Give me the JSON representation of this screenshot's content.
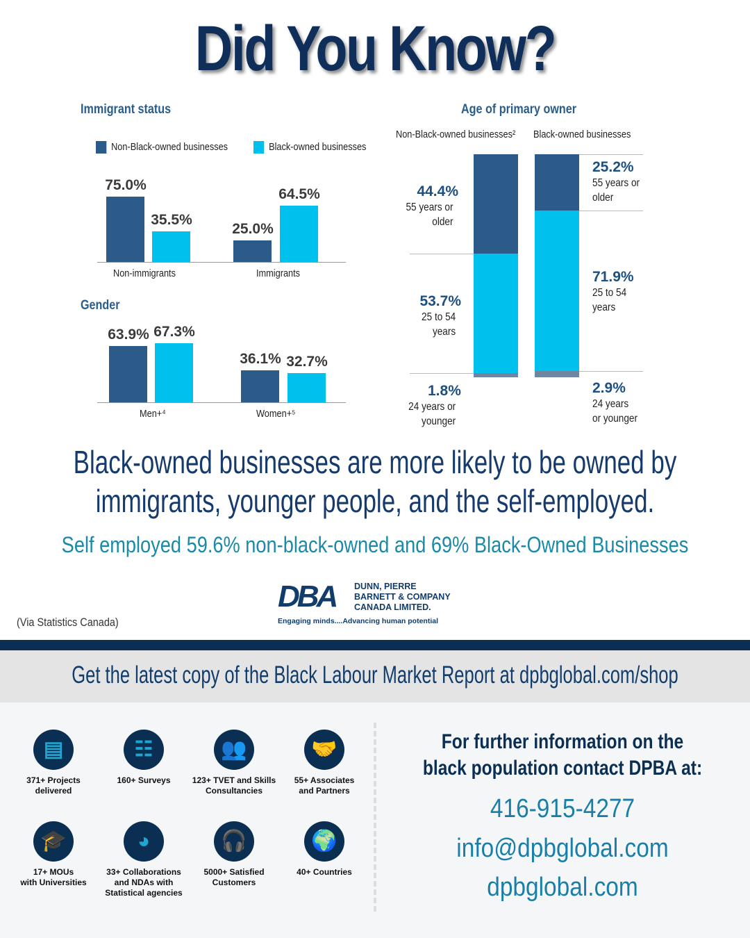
{
  "title": "Did You Know?",
  "chart_data": [
    {
      "type": "bar",
      "title": "Immigrant status",
      "categories": [
        "Non-immigrants",
        "Immigrants"
      ],
      "series": [
        {
          "name": "Non-Black-owned businesses",
          "values": [
            75.0,
            25.0
          ],
          "labels": [
            "75.0%",
            "25.0%"
          ],
          "color": "#2c5a89"
        },
        {
          "name": "Black-owned businesses",
          "values": [
            35.5,
            64.5
          ],
          "labels": [
            "35.5%",
            "64.5%"
          ],
          "color": "#00c1ee"
        }
      ],
      "ylim": [
        0,
        100
      ],
      "legend": "top"
    },
    {
      "type": "bar",
      "title": "Gender",
      "categories": [
        "Men+⁴",
        "Women+⁵"
      ],
      "series": [
        {
          "name": "Non-Black-owned businesses",
          "values": [
            63.9,
            36.1
          ],
          "labels": [
            "63.9%",
            "36.1%"
          ]
        },
        {
          "name": "Black-owned businesses",
          "values": [
            67.3,
            32.7
          ],
          "labels": [
            "67.3%",
            "32.7%"
          ]
        }
      ],
      "ylim": [
        0,
        100
      ]
    },
    {
      "type": "bar",
      "stacked": true,
      "title": "Age of primary owner",
      "categories": [
        "Non-Black-owned businesses²",
        "Black-owned businesses"
      ],
      "series": [
        {
          "name": "55 years or older",
          "values": [
            44.4,
            25.2
          ],
          "labels": [
            "44.4%",
            "25.2%"
          ],
          "color": "#2c5a89"
        },
        {
          "name": "25 to 54 years",
          "values": [
            53.7,
            71.9
          ],
          "labels": [
            "53.7%",
            "71.9%"
          ],
          "color": "#00c1ee"
        },
        {
          "name": "24 years or younger",
          "values": [
            1.8,
            2.9
          ],
          "labels": [
            "1.8%",
            "2.9%"
          ],
          "color": "#6f86a0"
        }
      ]
    }
  ],
  "labels": {
    "nb_left": [
      "55 years or",
      "older",
      "25 to 54",
      "years",
      "24 years or",
      "younger"
    ],
    "b_right": [
      "55 years or",
      "older",
      "25 to 54",
      "years",
      "24 years",
      "or younger"
    ]
  },
  "headline": [
    "Black-owned businesses are more likely to be owned by",
    "immigrants, younger people, and the self-employed."
  ],
  "self_employed": "Self employed 59.6% non-black-owned and 69% Black-Owned Businesses",
  "logo": {
    "mark": "DBA",
    "name": [
      "DUNN, PIERRE",
      "BARNETT & COMPANY",
      "CANADA LIMITED."
    ],
    "tagline": "Engaging minds....Advancing human potential"
  },
  "source": "(Via Statistics Canada)",
  "banner": "Get the latest copy of the Black Labour Market Report at dpbglobal.com/shop",
  "stats": [
    {
      "icon": "documents-icon",
      "text": [
        "371+ Projects",
        "delivered"
      ]
    },
    {
      "icon": "clipboard-icon",
      "text": [
        "160+ Surveys"
      ]
    },
    {
      "icon": "people-icon",
      "text": [
        "123+ TVET and Skills",
        "Consultancies"
      ]
    },
    {
      "icon": "handshake-icon",
      "text": [
        "55+ Associates",
        "and Partners"
      ]
    },
    {
      "icon": "graduation-cap-icon",
      "text": [
        "17+ MOUs",
        "with Universities"
      ]
    },
    {
      "icon": "pie-chart-icon",
      "text": [
        "33+ Collaborations",
        "and NDAs with",
        "Statistical agencies"
      ]
    },
    {
      "icon": "headset-icon",
      "text": [
        "5000+ Satisfied",
        "Customers"
      ]
    },
    {
      "icon": "globe-icon",
      "text": [
        "40+ Countries"
      ]
    }
  ],
  "contact": {
    "heading": [
      "For further information on the",
      "black population contact DPBA at:"
    ],
    "phone": "416-915-4277",
    "email": "info@dpbglobal.com",
    "web": "dpbglobal.com"
  }
}
